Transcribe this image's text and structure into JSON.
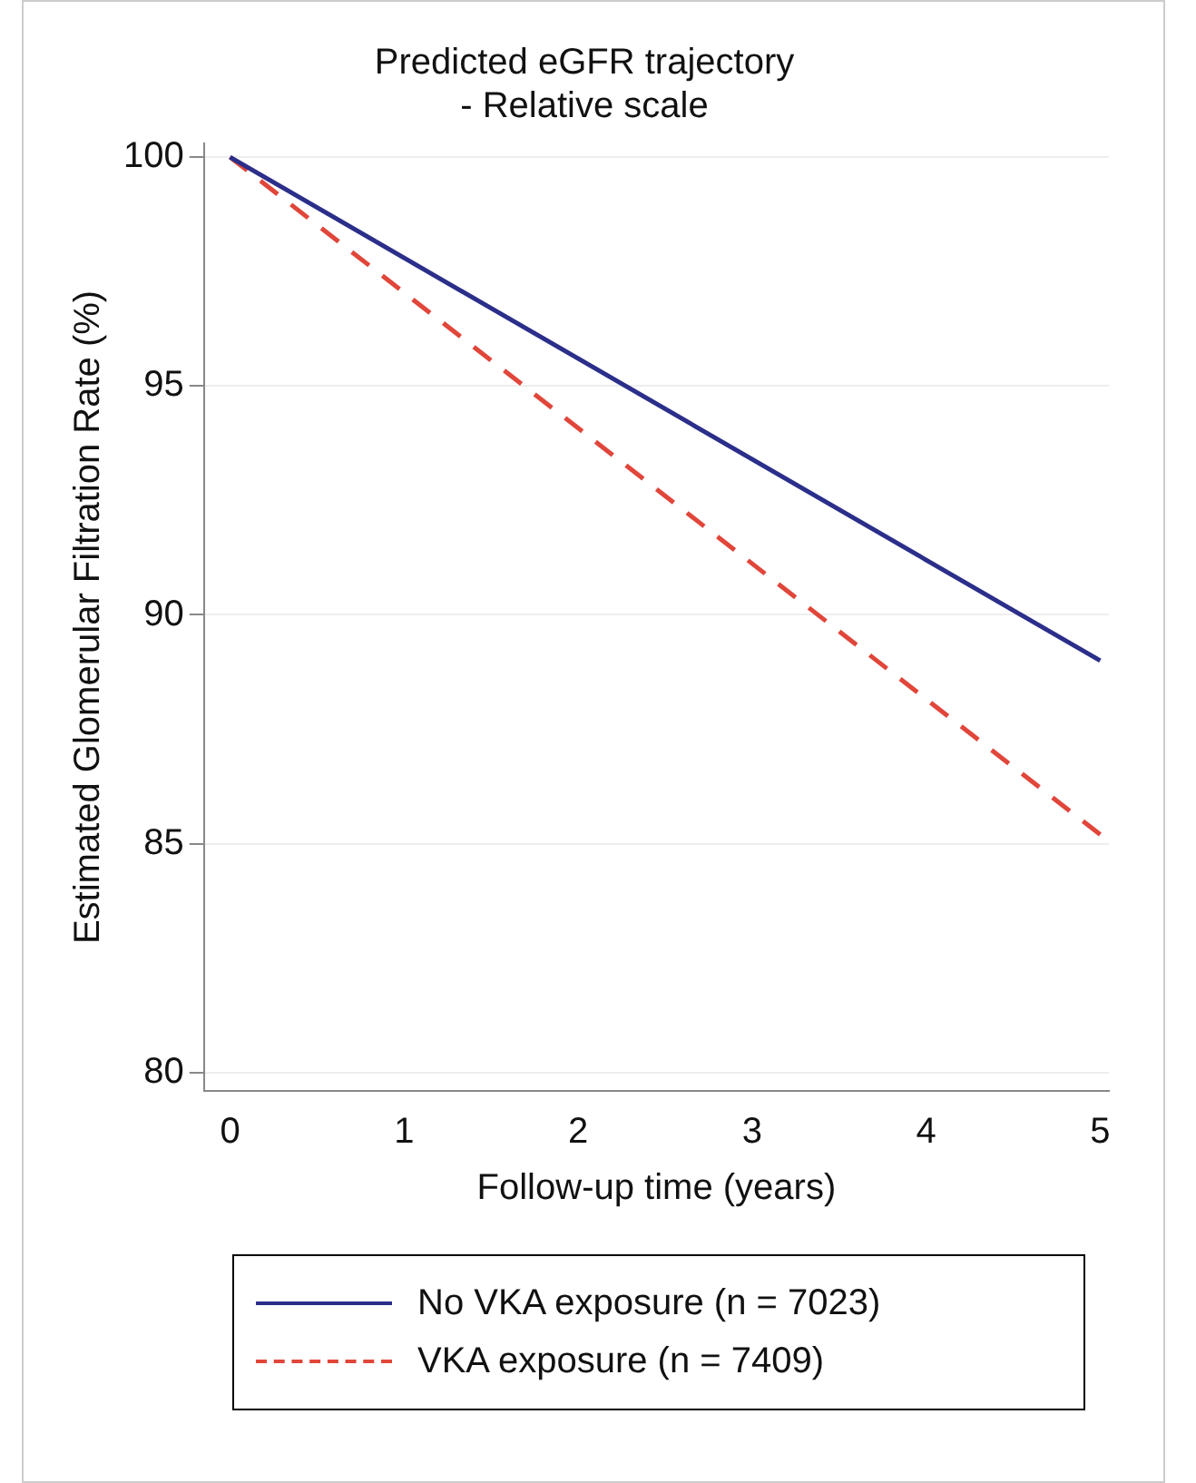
{
  "chart_data": {
    "type": "line",
    "title": [
      "Predicted eGFR trajectory",
      "- Relative scale"
    ],
    "xlabel": "Follow-up time (years)",
    "ylabel": "Estimated Glomerular Filtration Rate (%)",
    "x": [
      0,
      5
    ],
    "series": [
      {
        "name": "No VKA exposure (n = 7023)",
        "color": "#2b2f8a",
        "values": [
          100,
          89.0
        ],
        "line_style": "solid"
      },
      {
        "name": "VKA exposure (n = 7409)",
        "color": "#e0463a",
        "values": [
          100,
          85.2
        ],
        "line_style": "dashed"
      }
    ],
    "xlim": [
      -0.15,
      5.05
    ],
    "xticks": [
      0,
      1,
      2,
      3,
      4,
      5
    ],
    "ylim": [
      79.6,
      100.3
    ],
    "yticks": [
      80,
      85,
      90,
      95,
      100
    ],
    "grid": "y",
    "legend": "bottom",
    "marker": "none"
  }
}
